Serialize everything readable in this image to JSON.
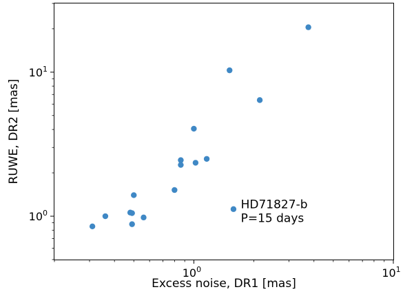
{
  "chart_data": {
    "type": "scatter",
    "xlabel": "Excess noise, DR1 [mas]",
    "ylabel": "RUWE, DR2 [mas]",
    "xscale": "log",
    "yscale": "log",
    "xlim": [
      0.2,
      10
    ],
    "ylim": [
      0.5,
      30
    ],
    "grid": false,
    "x_ticks": [
      {
        "value": 1,
        "base": "10",
        "exp": "0"
      },
      {
        "value": 10,
        "base": "10",
        "exp": "1"
      }
    ],
    "y_ticks": [
      {
        "value": 1,
        "base": "10",
        "exp": "0"
      },
      {
        "value": 10,
        "base": "10",
        "exp": "1"
      }
    ],
    "marker_color": "#3f88c5",
    "points": [
      {
        "x": 0.31,
        "y": 0.85
      },
      {
        "x": 0.36,
        "y": 1.0
      },
      {
        "x": 0.48,
        "y": 1.06
      },
      {
        "x": 0.49,
        "y": 0.88
      },
      {
        "x": 0.49,
        "y": 1.05
      },
      {
        "x": 0.5,
        "y": 1.4
      },
      {
        "x": 0.56,
        "y": 0.98
      },
      {
        "x": 0.8,
        "y": 1.52
      },
      {
        "x": 0.86,
        "y": 2.45
      },
      {
        "x": 0.86,
        "y": 2.27
      },
      {
        "x": 1.0,
        "y": 4.05
      },
      {
        "x": 1.02,
        "y": 2.35
      },
      {
        "x": 1.16,
        "y": 2.5
      },
      {
        "x": 1.51,
        "y": 10.3
      },
      {
        "x": 1.58,
        "y": 1.12
      },
      {
        "x": 2.14,
        "y": 6.4
      },
      {
        "x": 3.75,
        "y": 20.5
      }
    ],
    "annotation": {
      "lines": [
        "HD71827-b",
        "P=15 days"
      ],
      "x": 1.72,
      "y": 1.12
    }
  }
}
